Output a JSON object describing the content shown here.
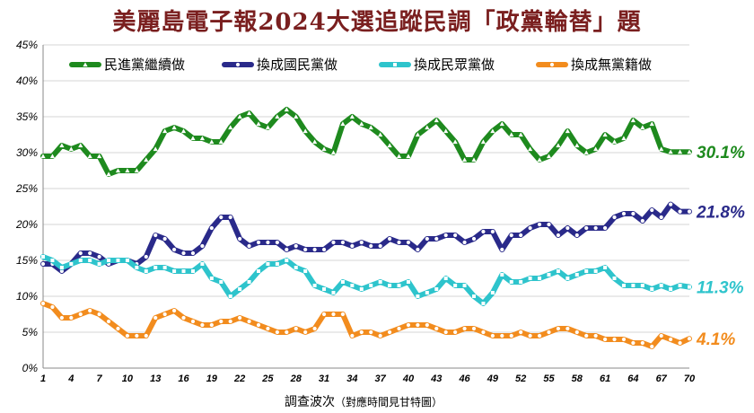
{
  "chart_data": {
    "type": "line",
    "title": "美麗島電子報2024大選追蹤民調「政黨輪替」題",
    "xlabel": "調查波次",
    "xlabel_note": "（對應時間見甘特圖）",
    "ylabel": "",
    "ylim": [
      0,
      45
    ],
    "y_ticks": [
      "0%",
      "5%",
      "10%",
      "15%",
      "20%",
      "25%",
      "30%",
      "35%",
      "40%",
      "45%"
    ],
    "x": [
      1,
      2,
      3,
      4,
      5,
      6,
      7,
      8,
      9,
      10,
      11,
      12,
      13,
      14,
      15,
      16,
      17,
      18,
      19,
      20,
      21,
      22,
      23,
      24,
      25,
      26,
      27,
      28,
      29,
      30,
      31,
      32,
      33,
      34,
      35,
      36,
      37,
      38,
      39,
      40,
      41,
      42,
      43,
      44,
      45,
      46,
      47,
      48,
      49,
      50,
      51,
      52,
      53,
      54,
      55,
      56,
      57,
      58,
      59,
      60,
      61,
      62,
      63,
      64,
      65,
      66,
      67,
      68,
      69,
      70
    ],
    "x_ticks": [
      "1",
      "4",
      "7",
      "10",
      "13",
      "16",
      "19",
      "22",
      "25",
      "28",
      "31",
      "34",
      "37",
      "40",
      "43",
      "46",
      "49",
      "52",
      "55",
      "58",
      "61",
      "64",
      "67",
      "70"
    ],
    "grid": true,
    "legend_position": "top",
    "series": [
      {
        "name": "民進黨繼續做",
        "color": "#1e8a1e",
        "marker": "triangle",
        "end_label": "30.1%",
        "values": [
          29.5,
          29.5,
          31.0,
          30.5,
          31.0,
          29.5,
          29.5,
          27.0,
          27.5,
          27.5,
          27.5,
          29.0,
          30.5,
          33.0,
          33.5,
          33.0,
          32.0,
          32.0,
          31.5,
          31.5,
          33.5,
          35.0,
          35.5,
          34.0,
          33.5,
          35.0,
          36.0,
          35.0,
          33.0,
          31.5,
          30.5,
          30.0,
          34.0,
          35.0,
          34.0,
          33.5,
          32.5,
          31.0,
          29.5,
          29.5,
          32.5,
          33.5,
          34.5,
          33.0,
          31.5,
          29.0,
          29.0,
          31.5,
          33.0,
          34.0,
          32.5,
          32.5,
          30.5,
          29.0,
          29.5,
          31.0,
          33.0,
          31.0,
          30.0,
          30.5,
          32.5,
          31.5,
          32.0,
          34.5,
          33.5,
          34.0,
          30.5,
          30.1,
          30.1,
          30.1
        ]
      },
      {
        "name": "換成國民黨做",
        "color": "#2a2a8a",
        "marker": "circle",
        "end_label": "21.8%",
        "values": [
          14.5,
          14.5,
          13.5,
          14.5,
          16.0,
          16.0,
          15.5,
          14.5,
          15.0,
          15.0,
          14.5,
          15.5,
          18.5,
          18.0,
          16.5,
          16.0,
          16.0,
          17.0,
          19.5,
          21.0,
          21.0,
          18.0,
          17.0,
          17.5,
          17.5,
          17.5,
          16.5,
          17.0,
          16.5,
          16.5,
          16.5,
          17.5,
          17.5,
          17.0,
          17.5,
          17.0,
          17.0,
          18.0,
          17.5,
          17.5,
          16.5,
          18.0,
          18.0,
          18.5,
          18.5,
          17.5,
          18.0,
          19.0,
          19.0,
          16.5,
          18.5,
          18.5,
          19.5,
          20.0,
          20.0,
          18.5,
          19.5,
          18.5,
          19.5,
          19.5,
          19.5,
          21.0,
          21.5,
          21.5,
          20.5,
          22.0,
          21.0,
          22.8,
          21.8,
          21.8
        ]
      },
      {
        "name": "換成民眾黨做",
        "color": "#2ec4cc",
        "marker": "square",
        "end_label": "11.3%",
        "values": [
          15.5,
          15.0,
          14.0,
          14.5,
          15.0,
          15.0,
          14.5,
          15.0,
          15.0,
          15.0,
          14.0,
          13.5,
          14.0,
          14.0,
          13.5,
          13.5,
          13.5,
          14.5,
          12.5,
          12.0,
          10.0,
          11.0,
          12.0,
          13.5,
          14.5,
          14.5,
          15.0,
          14.0,
          13.5,
          11.5,
          11.0,
          10.5,
          12.0,
          11.5,
          11.0,
          11.5,
          12.0,
          11.5,
          11.5,
          12.0,
          10.0,
          10.5,
          11.0,
          12.5,
          11.5,
          11.5,
          10.0,
          9.0,
          10.5,
          13.0,
          12.0,
          12.0,
          12.5,
          12.5,
          13.0,
          13.5,
          12.5,
          13.0,
          13.5,
          13.5,
          14.0,
          12.5,
          11.5,
          11.5,
          11.5,
          11.0,
          11.5,
          11.0,
          11.5,
          11.3
        ]
      },
      {
        "name": "換成無黨籍做",
        "color": "#f28c1e",
        "marker": "circle",
        "end_label": "4.1%",
        "values": [
          9.0,
          8.5,
          7.0,
          7.0,
          7.5,
          8.0,
          7.5,
          6.5,
          5.5,
          4.5,
          4.5,
          4.5,
          7.0,
          7.5,
          8.0,
          7.0,
          6.5,
          6.0,
          6.0,
          6.5,
          6.5,
          7.0,
          6.5,
          6.0,
          5.5,
          5.0,
          5.0,
          5.5,
          5.0,
          5.5,
          7.5,
          7.5,
          7.5,
          4.5,
          5.0,
          5.0,
          4.5,
          5.0,
          5.5,
          6.0,
          6.0,
          6.0,
          5.5,
          5.0,
          5.0,
          5.5,
          5.5,
          5.0,
          4.5,
          4.5,
          4.5,
          5.0,
          4.5,
          4.5,
          5.0,
          5.5,
          5.5,
          5.0,
          4.5,
          4.5,
          4.0,
          4.0,
          4.0,
          3.5,
          3.5,
          3.0,
          4.5,
          4.0,
          3.5,
          4.1
        ]
      }
    ]
  }
}
